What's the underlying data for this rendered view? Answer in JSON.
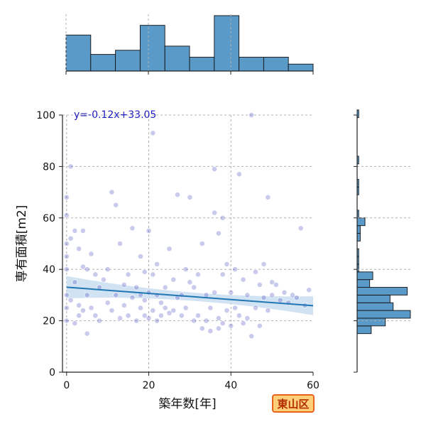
{
  "badge": {
    "text": "東山区",
    "bg": "#ffcf7a",
    "border": "#e8641a",
    "color": "#b22d00"
  },
  "chart_data": {
    "type": "scatter",
    "title": "",
    "xlabel": "築年数[年]",
    "ylabel": "専有面積[m2]",
    "xlim": [
      -1,
      60
    ],
    "ylim": [
      0,
      100
    ],
    "xticks": [
      0,
      20,
      40,
      60
    ],
    "yticks": [
      0,
      20,
      40,
      60,
      80,
      100
    ],
    "grid": true,
    "regression": {
      "label": "y=-0.12x+33.05",
      "slope": -0.12,
      "intercept": 33.05,
      "color": "#1f77b4",
      "band_color": "#c6dbef"
    },
    "point_color": "#3f3fbf",
    "x": [
      0,
      0,
      0,
      0,
      0,
      0,
      0,
      0,
      1,
      1,
      1,
      2,
      2,
      2,
      3,
      3,
      3,
      4,
      4,
      4,
      5,
      5,
      5,
      6,
      6,
      7,
      7,
      8,
      8,
      9,
      10,
      10,
      11,
      11,
      12,
      12,
      13,
      13,
      14,
      14,
      15,
      15,
      16,
      16,
      17,
      17,
      18,
      18,
      18,
      19,
      19,
      19,
      20,
      20,
      20,
      21,
      21,
      21,
      22,
      22,
      22,
      23,
      23,
      24,
      24,
      25,
      25,
      26,
      26,
      27,
      27,
      28,
      28,
      29,
      29,
      30,
      30,
      31,
      31,
      32,
      32,
      33,
      33,
      34,
      34,
      35,
      35,
      36,
      36,
      36,
      37,
      37,
      37,
      38,
      38,
      38,
      39,
      39,
      40,
      40,
      41,
      41,
      42,
      42,
      43,
      43,
      44,
      44,
      45,
      45,
      46,
      46,
      47,
      47,
      48,
      48,
      49,
      49,
      50,
      50,
      51,
      52,
      53,
      54,
      55,
      56,
      57,
      58,
      59
    ],
    "y": [
      68,
      61,
      50,
      45,
      40,
      30,
      25,
      20,
      80,
      52,
      28,
      55,
      35,
      19,
      48,
      26,
      22,
      55,
      41,
      24,
      40,
      30,
      15,
      46,
      25,
      38,
      22,
      33,
      20,
      36,
      40,
      27,
      70,
      24,
      65,
      30,
      50,
      21,
      34,
      26,
      38,
      22,
      56,
      29,
      33,
      20,
      45,
      30,
      25,
      39,
      28,
      22,
      55,
      31,
      21,
      93,
      38,
      24,
      42,
      30,
      20,
      27,
      22,
      33,
      25,
      48,
      23,
      36,
      24,
      69,
      29,
      30,
      22,
      40,
      25,
      68,
      35,
      33,
      20,
      38,
      22,
      50,
      17,
      30,
      20,
      25,
      16,
      79,
      62,
      31,
      54,
      21,
      17,
      60,
      38,
      19,
      42,
      24,
      31,
      18,
      40,
      25,
      77,
      22,
      36,
      19,
      30,
      21,
      100,
      14,
      39,
      25,
      34,
      18,
      42,
      29,
      68,
      24,
      30,
      35,
      34,
      28,
      31,
      27,
      30,
      29,
      56,
      26,
      32
    ]
  },
  "marginal_x": {
    "bins": [
      0,
      6,
      12,
      18,
      24,
      30,
      36,
      42,
      48,
      54,
      60
    ],
    "counts": [
      26,
      12,
      15,
      33,
      18,
      10,
      40,
      10,
      10,
      5
    ]
  },
  "marginal_y": {
    "bins": [
      15,
      18,
      21,
      24,
      27,
      30,
      33,
      36,
      39,
      42,
      45,
      48,
      51,
      54,
      57,
      60,
      63,
      66,
      69,
      72,
      75,
      78,
      81,
      84,
      87,
      90,
      93,
      96,
      99,
      102
    ],
    "counts": [
      9,
      18,
      34,
      23,
      21,
      32,
      8,
      10,
      1,
      1,
      1,
      0,
      2,
      2,
      5,
      1,
      0,
      0,
      1,
      1,
      0,
      0,
      1,
      0,
      0,
      0,
      0,
      0,
      1
    ]
  }
}
